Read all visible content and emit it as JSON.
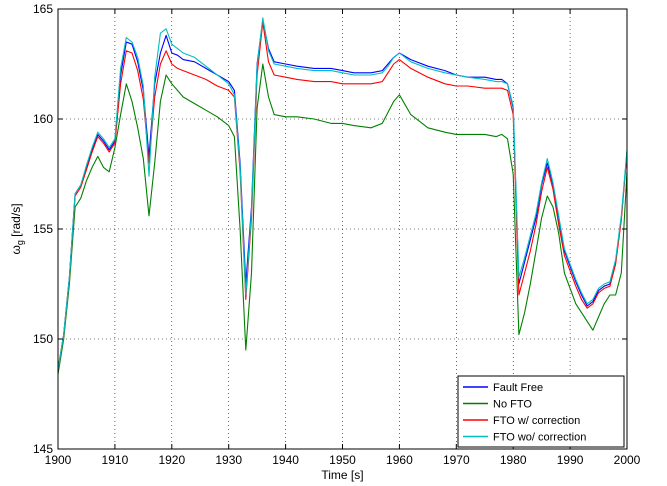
{
  "chart_data": {
    "type": "line",
    "title": "",
    "xlabel": "Time [s]",
    "ylabel": "ω",
    "ylabel_subscript": "g",
    "ylabel_units": " [rad/s]",
    "xlim": [
      1900,
      2000
    ],
    "ylim": [
      145,
      165
    ],
    "xticks": [
      1900,
      1910,
      1920,
      1930,
      1940,
      1950,
      1960,
      1970,
      1980,
      1990,
      2000
    ],
    "yticks": [
      145,
      150,
      155,
      160,
      165
    ],
    "grid": true,
    "legend_position": "bottom-right",
    "series": [
      {
        "name": "Fault Free",
        "color": "#0000ff",
        "x": [
          1900,
          1901,
          1902,
          1903,
          1904,
          1905,
          1906,
          1907,
          1908,
          1909,
          1910,
          1911,
          1912,
          1913,
          1914,
          1915,
          1916,
          1917,
          1918,
          1919,
          1920,
          1921,
          1922,
          1924,
          1926,
          1928,
          1930,
          1931,
          1932,
          1933,
          1934,
          1935,
          1936,
          1937,
          1938,
          1940,
          1942,
          1945,
          1948,
          1950,
          1952,
          1955,
          1957,
          1958,
          1959,
          1960,
          1962,
          1965,
          1968,
          1970,
          1972,
          1975,
          1977,
          1978,
          1979,
          1980,
          1981,
          1982,
          1983,
          1984,
          1985,
          1986,
          1987,
          1988,
          1989,
          1990,
          1991,
          1992,
          1993,
          1994,
          1995,
          1996,
          1997,
          1998,
          1999,
          2000
        ],
        "y": [
          148.6,
          150.2,
          152.8,
          156.6,
          157.0,
          157.8,
          158.6,
          159.3,
          159.0,
          158.6,
          159.0,
          162.0,
          163.5,
          163.4,
          162.6,
          161.3,
          158.3,
          161.6,
          163.0,
          163.8,
          163.0,
          162.9,
          162.7,
          162.6,
          162.3,
          162.0,
          161.7,
          161.3,
          158.0,
          152.5,
          156.0,
          162.5,
          164.5,
          163.2,
          162.6,
          162.5,
          162.4,
          162.3,
          162.3,
          162.2,
          162.1,
          162.1,
          162.2,
          162.5,
          162.8,
          163.0,
          162.7,
          162.4,
          162.2,
          162.0,
          161.9,
          161.9,
          161.8,
          161.8,
          161.6,
          160.5,
          152.5,
          153.5,
          154.5,
          155.5,
          157.0,
          158.0,
          157.0,
          155.5,
          154.0,
          153.3,
          152.6,
          152.0,
          151.5,
          151.7,
          152.2,
          152.4,
          152.5,
          153.5,
          155.5,
          158.5
        ]
      },
      {
        "name": "No FTO",
        "color": "#008000",
        "x": [
          1900,
          1901,
          1902,
          1903,
          1904,
          1905,
          1906,
          1907,
          1908,
          1909,
          1910,
          1911,
          1912,
          1913,
          1914,
          1915,
          1916,
          1917,
          1918,
          1919,
          1920,
          1921,
          1922,
          1924,
          1926,
          1928,
          1930,
          1931,
          1932,
          1933,
          1934,
          1935,
          1936,
          1937,
          1938,
          1940,
          1942,
          1945,
          1948,
          1950,
          1952,
          1955,
          1957,
          1958,
          1959,
          1960,
          1962,
          1965,
          1968,
          1970,
          1972,
          1975,
          1977,
          1978,
          1979,
          1980,
          1981,
          1982,
          1983,
          1984,
          1985,
          1986,
          1987,
          1988,
          1989,
          1990,
          1991,
          1992,
          1993,
          1994,
          1995,
          1996,
          1997,
          1998,
          1999,
          2000
        ],
        "y": [
          148.4,
          150.0,
          152.5,
          156.0,
          156.4,
          157.2,
          157.8,
          158.3,
          157.8,
          157.6,
          158.7,
          160.2,
          161.6,
          160.8,
          159.6,
          158.2,
          155.6,
          158.0,
          160.8,
          162.0,
          161.6,
          161.3,
          161.0,
          160.7,
          160.4,
          160.1,
          159.7,
          159.2,
          155.0,
          149.5,
          153.0,
          160.5,
          162.5,
          161.0,
          160.2,
          160.1,
          160.1,
          160.0,
          159.8,
          159.8,
          159.7,
          159.6,
          159.8,
          160.3,
          160.8,
          161.1,
          160.2,
          159.6,
          159.4,
          159.3,
          159.3,
          159.3,
          159.2,
          159.3,
          159.1,
          157.5,
          150.2,
          151.2,
          152.5,
          154.0,
          155.5,
          156.5,
          156.0,
          154.8,
          153.0,
          152.3,
          151.6,
          151.2,
          150.8,
          150.4,
          151.0,
          151.6,
          152.0,
          152.0,
          153.0,
          157.6
        ]
      },
      {
        "name": "FTO w/ correction",
        "color": "#ff0000",
        "x": [
          1900,
          1901,
          1902,
          1903,
          1904,
          1905,
          1906,
          1907,
          1908,
          1909,
          1910,
          1911,
          1912,
          1913,
          1914,
          1915,
          1916,
          1917,
          1918,
          1919,
          1920,
          1921,
          1922,
          1924,
          1926,
          1928,
          1930,
          1931,
          1932,
          1933,
          1934,
          1935,
          1936,
          1937,
          1938,
          1940,
          1942,
          1945,
          1948,
          1950,
          1952,
          1955,
          1957,
          1958,
          1959,
          1960,
          1962,
          1965,
          1968,
          1970,
          1972,
          1975,
          1977,
          1978,
          1979,
          1980,
          1981,
          1982,
          1983,
          1984,
          1985,
          1986,
          1987,
          1988,
          1989,
          1990,
          1991,
          1992,
          1993,
          1994,
          1995,
          1996,
          1997,
          1998,
          1999,
          2000
        ],
        "y": [
          148.6,
          150.2,
          152.8,
          156.5,
          156.9,
          157.7,
          158.5,
          159.2,
          158.9,
          158.5,
          158.9,
          161.6,
          163.1,
          163.0,
          162.2,
          160.9,
          158.0,
          161.0,
          162.5,
          163.1,
          162.5,
          162.3,
          162.2,
          162.0,
          161.8,
          161.5,
          161.3,
          161.0,
          157.6,
          151.8,
          155.5,
          162.0,
          164.4,
          162.6,
          162.0,
          161.9,
          161.8,
          161.7,
          161.7,
          161.6,
          161.6,
          161.6,
          161.7,
          162.1,
          162.5,
          162.7,
          162.3,
          161.9,
          161.6,
          161.5,
          161.5,
          161.4,
          161.4,
          161.4,
          161.3,
          160.2,
          152.0,
          153.0,
          154.0,
          155.2,
          156.7,
          157.8,
          156.8,
          155.2,
          153.8,
          153.1,
          152.4,
          151.8,
          151.4,
          151.6,
          152.1,
          152.3,
          152.4,
          153.4,
          155.4,
          158.5
        ]
      },
      {
        "name": "FTO wo/ correction",
        "color": "#00bfbf",
        "x": [
          1900,
          1901,
          1902,
          1903,
          1904,
          1905,
          1906,
          1907,
          1908,
          1909,
          1910,
          1911,
          1912,
          1913,
          1914,
          1915,
          1916,
          1917,
          1918,
          1919,
          1920,
          1921,
          1922,
          1924,
          1926,
          1928,
          1930,
          1931,
          1932,
          1933,
          1934,
          1935,
          1936,
          1937,
          1938,
          1940,
          1942,
          1945,
          1948,
          1950,
          1952,
          1955,
          1957,
          1958,
          1959,
          1960,
          1962,
          1965,
          1968,
          1970,
          1972,
          1975,
          1977,
          1978,
          1979,
          1980,
          1981,
          1982,
          1983,
          1984,
          1985,
          1986,
          1987,
          1988,
          1989,
          1990,
          1991,
          1992,
          1993,
          1994,
          1995,
          1996,
          1997,
          1998,
          1999,
          2000
        ],
        "y": [
          148.6,
          150.2,
          152.8,
          156.6,
          157.0,
          157.9,
          158.7,
          159.4,
          159.1,
          158.7,
          159.1,
          162.3,
          163.7,
          163.5,
          162.8,
          161.5,
          157.4,
          161.9,
          163.9,
          164.1,
          163.4,
          163.2,
          163.0,
          162.8,
          162.4,
          162.0,
          161.6,
          161.1,
          157.8,
          152.0,
          155.8,
          162.4,
          164.6,
          163.1,
          162.5,
          162.4,
          162.3,
          162.2,
          162.2,
          162.1,
          162.0,
          162.0,
          162.1,
          162.4,
          162.8,
          163.0,
          162.6,
          162.3,
          162.1,
          162.0,
          161.9,
          161.8,
          161.7,
          161.7,
          161.6,
          160.6,
          152.8,
          153.7,
          154.7,
          155.7,
          157.1,
          158.2,
          157.1,
          155.6,
          154.1,
          153.4,
          152.7,
          152.1,
          151.6,
          151.8,
          152.3,
          152.5,
          152.6,
          153.6,
          155.6,
          158.6
        ]
      }
    ]
  }
}
